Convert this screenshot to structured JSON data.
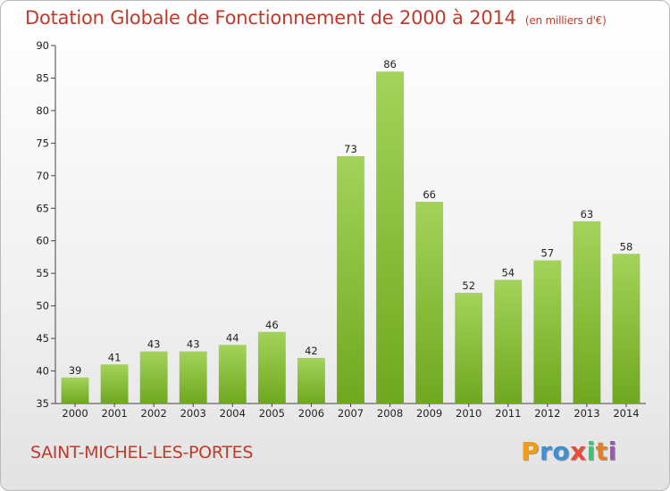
{
  "title": "Dotation Globale de Fonctionnement de 2000 à 2014",
  "unit_note": "(en milliers d'€)",
  "commune": "SAINT-MICHEL-LES-PORTES",
  "logo": {
    "letters": [
      "P",
      "r",
      "o",
      "x",
      "i",
      "t",
      "i"
    ],
    "colors": [
      "#f39c12",
      "#3f8fd2",
      "#3f8fd2",
      "#e74c3c",
      "#2ecc71",
      "#e67e22",
      "#9b59b6"
    ]
  },
  "colors": {
    "bar_light": "#a3d35a",
    "bar_dark": "#6fa81f",
    "title": "#c0392b"
  },
  "chart_data": {
    "type": "bar",
    "categories": [
      "2000",
      "2001",
      "2002",
      "2003",
      "2004",
      "2005",
      "2006",
      "2007",
      "2008",
      "2009",
      "2010",
      "2011",
      "2012",
      "2013",
      "2014"
    ],
    "values": [
      39,
      41,
      43,
      43,
      44,
      46,
      42,
      73,
      86,
      66,
      52,
      54,
      57,
      63,
      58
    ],
    "yticks": [
      35,
      40,
      45,
      50,
      55,
      60,
      65,
      70,
      75,
      80,
      85,
      90
    ],
    "ylim": [
      35,
      90
    ],
    "grid": false,
    "legend": "none"
  }
}
